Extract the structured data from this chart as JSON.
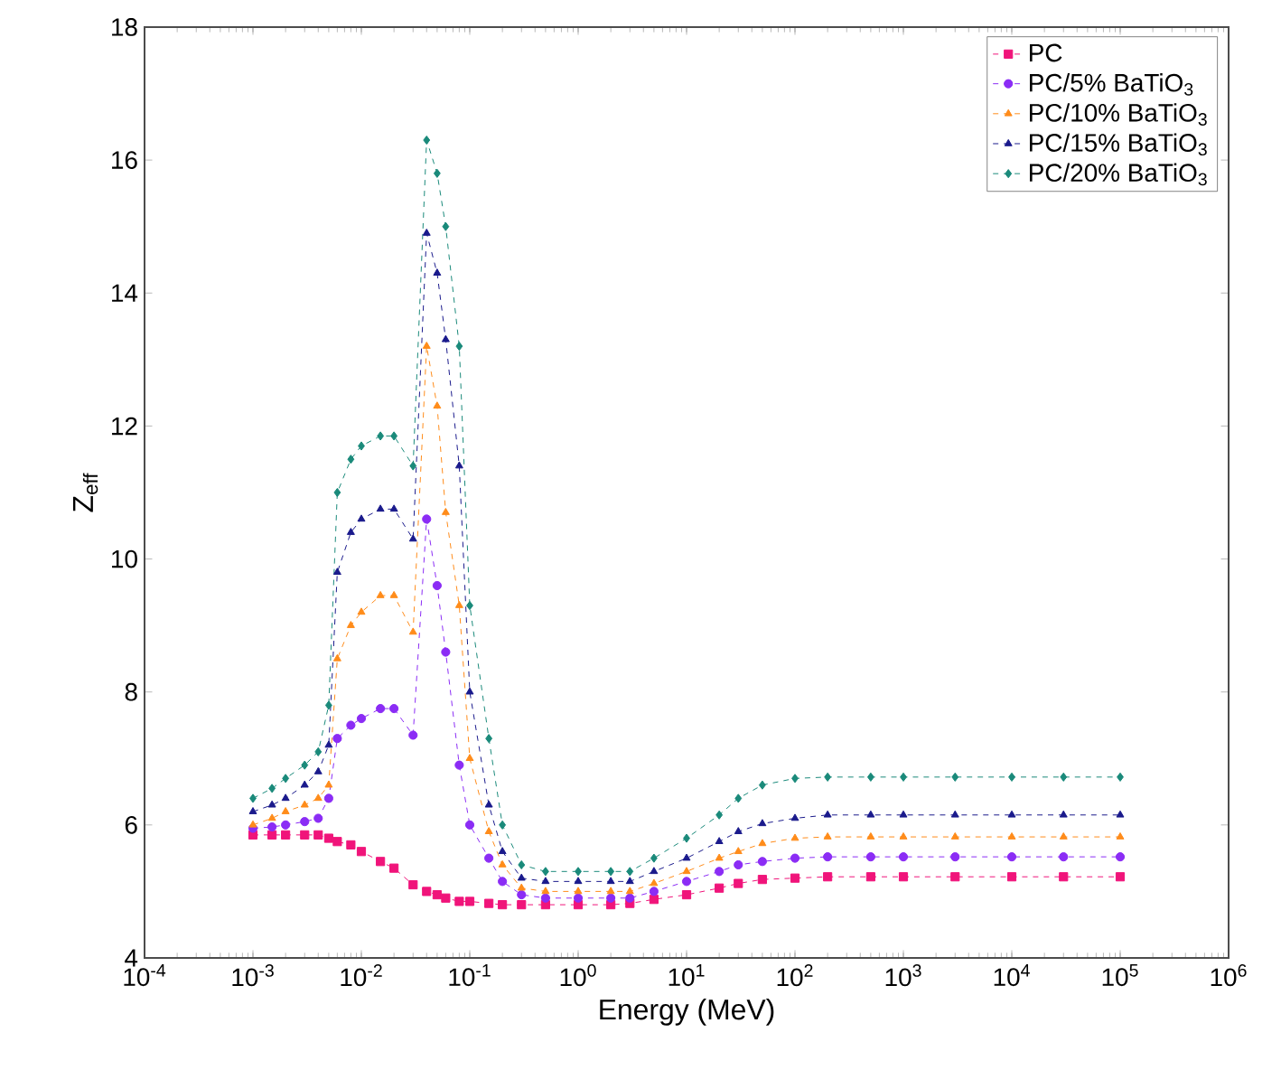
{
  "chart_data": {
    "type": "line",
    "xlabel": "Energy (MeV)",
    "ylabel": "Z$_{eff}$",
    "log": "x",
    "legend": "top right",
    "grid": false,
    "line_style": "dashed",
    "x": [
      0.001,
      0.0015,
      0.002,
      0.003,
      0.004,
      0.005,
      0.006,
      0.008,
      0.01,
      0.015,
      0.02,
      0.03,
      0.04,
      0.05,
      0.06,
      0.08,
      0.1,
      0.15,
      0.2,
      0.3,
      0.5,
      1,
      2,
      3,
      5,
      10,
      20,
      30,
      50,
      100,
      200,
      500,
      1000,
      3000,
      10000,
      30000,
      100000
    ],
    "xlim": [
      0.0001,
      1000000
    ],
    "xticks": [
      {
        "value": 0.0001,
        "label": "10$^{-4}$"
      },
      {
        "value": 0.001,
        "label": "10$^{-3}$"
      },
      {
        "value": 0.01,
        "label": "10$^{-2}$"
      },
      {
        "value": 0.1,
        "label": "10$^{-1}$"
      },
      {
        "value": 1,
        "label": "10$^{0}$"
      },
      {
        "value": 10,
        "label": "10$^{1}$"
      },
      {
        "value": 100,
        "label": "10$^{2}$"
      },
      {
        "value": 1000,
        "label": "10$^{3}$"
      },
      {
        "value": 10000,
        "label": "10$^{4}$"
      },
      {
        "value": 100000,
        "label": "10$^{5}$"
      },
      {
        "value": 1000000,
        "label": "10$^{6}$"
      }
    ],
    "ylim": [
      4,
      18
    ],
    "yticks": [
      4,
      6,
      8,
      10,
      12,
      14,
      16,
      18
    ],
    "series": [
      {
        "name": "PC",
        "color": "#f0147a",
        "marker": "square",
        "values": [
          5.85,
          5.85,
          5.85,
          5.85,
          5.85,
          5.8,
          5.75,
          5.7,
          5.6,
          5.45,
          5.35,
          5.1,
          5.0,
          4.95,
          4.9,
          4.85,
          4.85,
          4.82,
          4.8,
          4.8,
          4.8,
          4.8,
          4.8,
          4.82,
          4.88,
          4.95,
          5.05,
          5.12,
          5.18,
          5.2,
          5.22,
          5.22,
          5.22,
          5.22,
          5.22,
          5.22,
          5.22
        ]
      },
      {
        "name": "PC/5% BaTiO$_{3}$",
        "color": "#8b2cf5",
        "marker": "circle",
        "values": [
          5.95,
          5.97,
          6.0,
          6.05,
          6.1,
          6.4,
          7.3,
          7.5,
          7.6,
          7.75,
          7.75,
          7.35,
          10.6,
          9.6,
          8.6,
          6.9,
          6.0,
          5.5,
          5.15,
          4.95,
          4.9,
          4.9,
          4.9,
          4.9,
          5.0,
          5.15,
          5.3,
          5.4,
          5.45,
          5.5,
          5.52,
          5.52,
          5.52,
          5.52,
          5.52,
          5.52,
          5.52
        ]
      },
      {
        "name": "PC/10% BaTiO$_{3}$",
        "color": "#ff8c1a",
        "marker": "triangle",
        "values": [
          6.0,
          6.1,
          6.2,
          6.3,
          6.4,
          6.6,
          8.5,
          9.0,
          9.2,
          9.45,
          9.45,
          8.9,
          13.2,
          12.3,
          10.7,
          9.3,
          7.0,
          5.9,
          5.4,
          5.05,
          5.0,
          5.0,
          5.0,
          5.0,
          5.12,
          5.3,
          5.5,
          5.6,
          5.72,
          5.8,
          5.82,
          5.82,
          5.82,
          5.82,
          5.82,
          5.82,
          5.82
        ]
      },
      {
        "name": "PC/15% BaTiO$_{3}$",
        "color": "#1a1a8c",
        "marker": "triangle-down",
        "values": [
          6.2,
          6.3,
          6.4,
          6.6,
          6.8,
          7.2,
          9.8,
          10.4,
          10.6,
          10.75,
          10.75,
          10.3,
          14.9,
          14.3,
          13.3,
          11.4,
          8.0,
          6.3,
          5.6,
          5.2,
          5.15,
          5.15,
          5.15,
          5.15,
          5.3,
          5.5,
          5.75,
          5.9,
          6.02,
          6.1,
          6.15,
          6.15,
          6.15,
          6.15,
          6.15,
          6.15,
          6.15
        ]
      },
      {
        "name": "PC/20% BaTiO$_{3}$",
        "color": "#1a8a7a",
        "marker": "diamond",
        "values": [
          6.4,
          6.55,
          6.7,
          6.9,
          7.1,
          7.8,
          11.0,
          11.5,
          11.7,
          11.85,
          11.85,
          11.4,
          16.3,
          15.8,
          15.0,
          13.2,
          9.3,
          7.3,
          6.0,
          5.4,
          5.3,
          5.3,
          5.3,
          5.3,
          5.5,
          5.8,
          6.15,
          6.4,
          6.6,
          6.7,
          6.72,
          6.72,
          6.72,
          6.72,
          6.72,
          6.72,
          6.72
        ]
      }
    ]
  }
}
